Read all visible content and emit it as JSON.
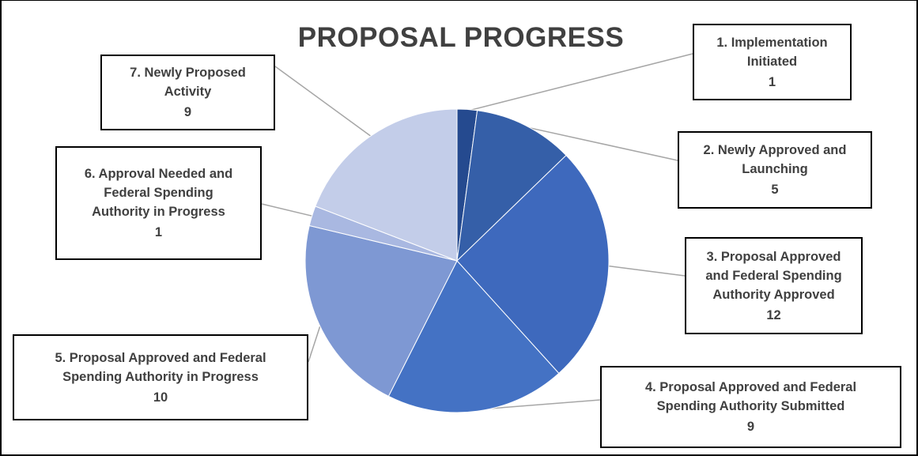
{
  "chart_data": {
    "type": "pie",
    "title": "PROPOSAL PROGRESS",
    "categories": [
      "1. Implementation Initiated",
      "2. Newly Approved and Launching",
      "3. Proposal Approved and Federal Spending Authority Approved",
      "4. Proposal Approved and Federal Spending Authority Submitted",
      "5. Proposal Approved and Federal Spending Authority in Progress",
      "6. Approval Needed and Federal Spending Authority in Progress",
      "7. Newly Proposed Activity"
    ],
    "values": [
      1,
      5,
      12,
      9,
      10,
      1,
      9
    ],
    "colors": [
      "#254a8f",
      "#355fa8",
      "#3e69bd",
      "#4472c4",
      "#7e98d3",
      "#a9b8e1",
      "#c3cde9"
    ],
    "labels": [
      {
        "lines": [
          "1. Implementation",
          "Initiated"
        ],
        "value": "1"
      },
      {
        "lines": [
          "2. Newly Approved and",
          "Launching"
        ],
        "value": "5"
      },
      {
        "lines": [
          "3. Proposal Approved",
          "and Federal Spending",
          "Authority Approved"
        ],
        "value": "12"
      },
      {
        "lines": [
          "4. Proposal Approved and Federal",
          "Spending Authority Submitted"
        ],
        "value": "9"
      },
      {
        "lines": [
          "5. Proposal Approved and Federal",
          "Spending Authority in Progress"
        ],
        "value": "10"
      },
      {
        "lines": [
          "6. Approval Needed and",
          "Federal Spending",
          "Authority in Progress"
        ],
        "value": "1"
      },
      {
        "lines": [
          "7. Newly Proposed",
          "Activity"
        ],
        "value": "9"
      }
    ],
    "legend": "none",
    "grid": false
  }
}
